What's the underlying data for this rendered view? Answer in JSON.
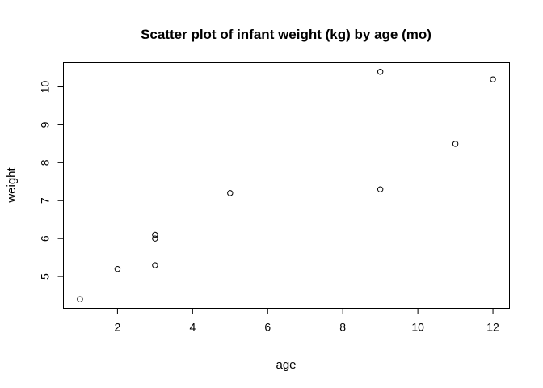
{
  "chart_data": {
    "type": "scatter",
    "title": "Scatter plot of infant weight (kg) by age (mo)",
    "xlabel": "age",
    "ylabel": "weight",
    "xlim": [
      0.56,
      12.44
    ],
    "ylim": [
      4.16,
      10.64
    ],
    "xticks": [
      2,
      4,
      6,
      8,
      10,
      12
    ],
    "yticks": [
      5,
      6,
      7,
      8,
      9,
      10
    ],
    "grid": false,
    "series": [
      {
        "x": [
          1,
          2,
          3,
          3,
          3,
          5,
          9,
          9,
          11,
          12
        ],
        "y": [
          4.4,
          5.2,
          5.3,
          6.0,
          6.1,
          7.2,
          7.3,
          10.4,
          8.5,
          10.2
        ]
      }
    ],
    "marker": "open-circle",
    "colors": {
      "points": "#000000",
      "axes": "#000000",
      "background": "#ffffff"
    }
  }
}
